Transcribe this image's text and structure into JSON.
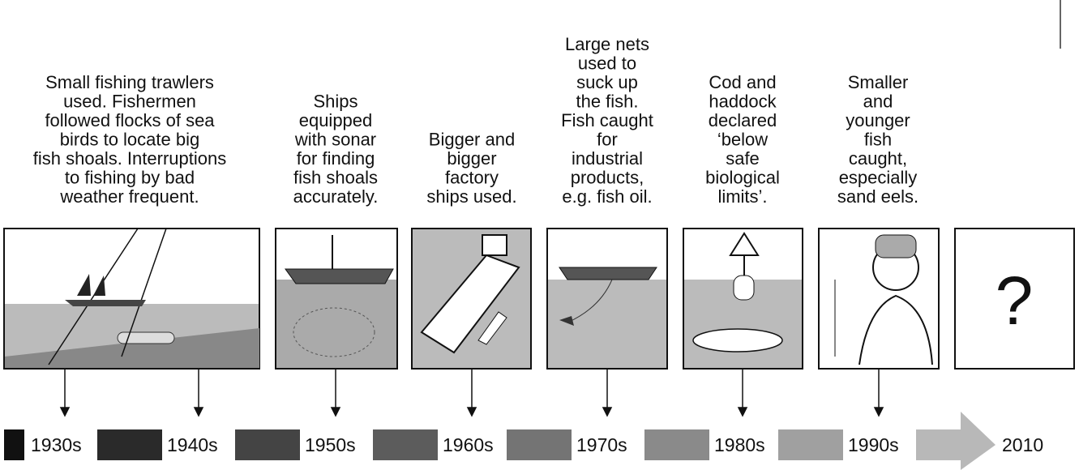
{
  "events": [
    {
      "caption": [
        "Small fishing trawlers",
        "used. Fishermen",
        "followed flocks of sea",
        "birds to locate big",
        "fish shoals. Interruptions",
        "to fishing by bad",
        "weather frequent."
      ]
    },
    {
      "caption": [
        "Ships",
        "equipped",
        "with sonar",
        "for finding",
        "fish shoals",
        "accurately."
      ]
    },
    {
      "caption": [
        "Bigger and",
        "bigger",
        "factory",
        "ships used."
      ]
    },
    {
      "caption": [
        "Large nets",
        "used to",
        "suck up",
        "the fish.",
        "Fish caught",
        "for",
        "industrial",
        "products,",
        "e.g. fish oil."
      ]
    },
    {
      "caption": [
        "Cod and",
        "haddock",
        "declared",
        "‘below",
        "safe",
        "biological",
        "limits’."
      ]
    },
    {
      "caption": [
        "Smaller",
        "and",
        "younger",
        "fish",
        "caught,",
        "especially",
        "sand eels."
      ]
    }
  ],
  "unknown": "?",
  "periods": [
    "1930s",
    "1940s",
    "1950s",
    "1960s",
    "1970s",
    "1980s",
    "1990s",
    "2010"
  ]
}
